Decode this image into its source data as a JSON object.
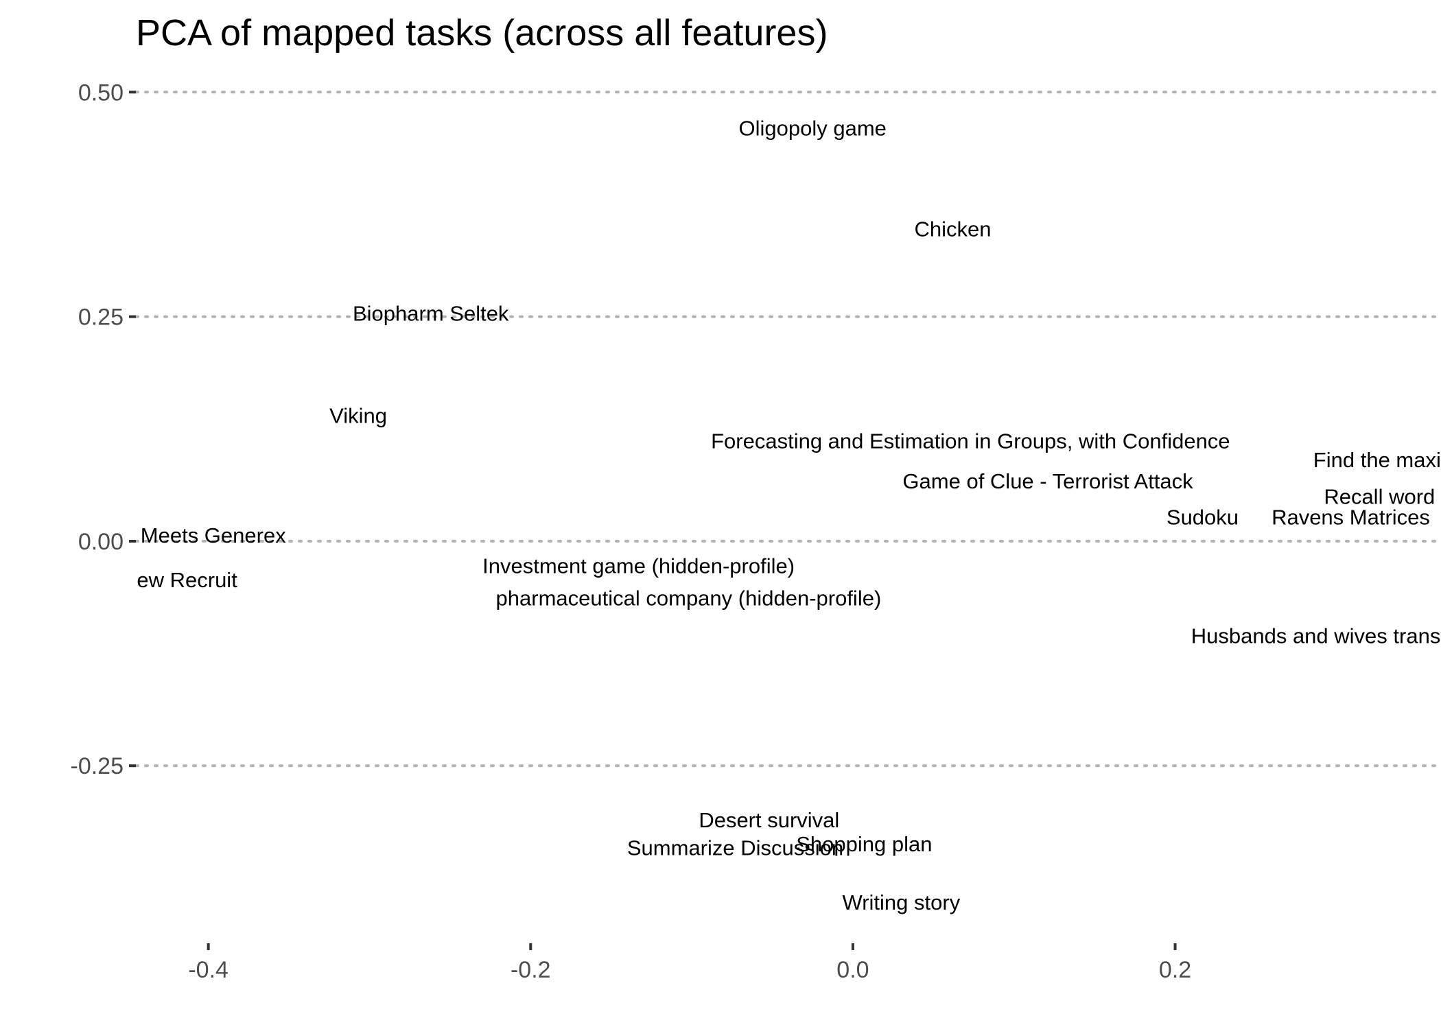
{
  "chart_data": {
    "type": "scatter",
    "title": "PCA of mapped tasks (across all features)",
    "xlabel": "",
    "ylabel": "",
    "xlim": [
      -0.445,
      0.365
    ],
    "ylim": [
      -0.44,
      0.53
    ],
    "x_ticks": [
      -0.4,
      -0.2,
      0.0,
      0.2
    ],
    "x_tick_labels": [
      "-0.4",
      "-0.2",
      "0.0",
      "0.2"
    ],
    "y_ticks": [
      0.5,
      0.25,
      0.0,
      -0.25
    ],
    "y_tick_labels": [
      "0.50",
      "0.25",
      "0.00",
      "-0.25"
    ],
    "grid": "horizontal dotted",
    "points": [
      {
        "label": "Oligopoly game",
        "x": -0.025,
        "y": 0.46
      },
      {
        "label": "Chicken",
        "x": 0.062,
        "y": 0.348
      },
      {
        "label": "Biopharm Seltek",
        "x": -0.262,
        "y": 0.254
      },
      {
        "label": "Viking",
        "x": -0.307,
        "y": 0.14
      },
      {
        "label": "Forecasting and Estimation in Groups, with Confidence",
        "x": 0.073,
        "y": 0.112
      },
      {
        "label": "Find the maximum",
        "x": 0.34,
        "y": 0.091
      },
      {
        "label": "Game of Clue - Terrorist Attack",
        "x": 0.121,
        "y": 0.067
      },
      {
        "label": "Recall word lists",
        "x": 0.34,
        "y": 0.05
      },
      {
        "label": "Sudoku",
        "x": 0.217,
        "y": 0.027
      },
      {
        "label": "Ravens Matrices",
        "x": 0.309,
        "y": 0.027
      },
      {
        "label": "Energetics Meets Generex",
        "x": -0.43,
        "y": 0.007
      },
      {
        "label": "New Recruit",
        "x": -0.418,
        "y": -0.043
      },
      {
        "label": "Investment game (hidden-profile)",
        "x": -0.133,
        "y": -0.027
      },
      {
        "label": "pharmaceutical company (hidden-profile)",
        "x": -0.102,
        "y": -0.063
      },
      {
        "label": "Husbands and wives transfer",
        "x": 0.295,
        "y": -0.105
      },
      {
        "label": "Desert survival",
        "x": -0.052,
        "y": -0.31
      },
      {
        "label": "Shopping plan",
        "x": 0.007,
        "y": -0.337
      },
      {
        "label": "Summarize Discussion",
        "x": -0.073,
        "y": -0.341
      },
      {
        "label": "Writing story",
        "x": 0.03,
        "y": -0.402
      }
    ]
  }
}
